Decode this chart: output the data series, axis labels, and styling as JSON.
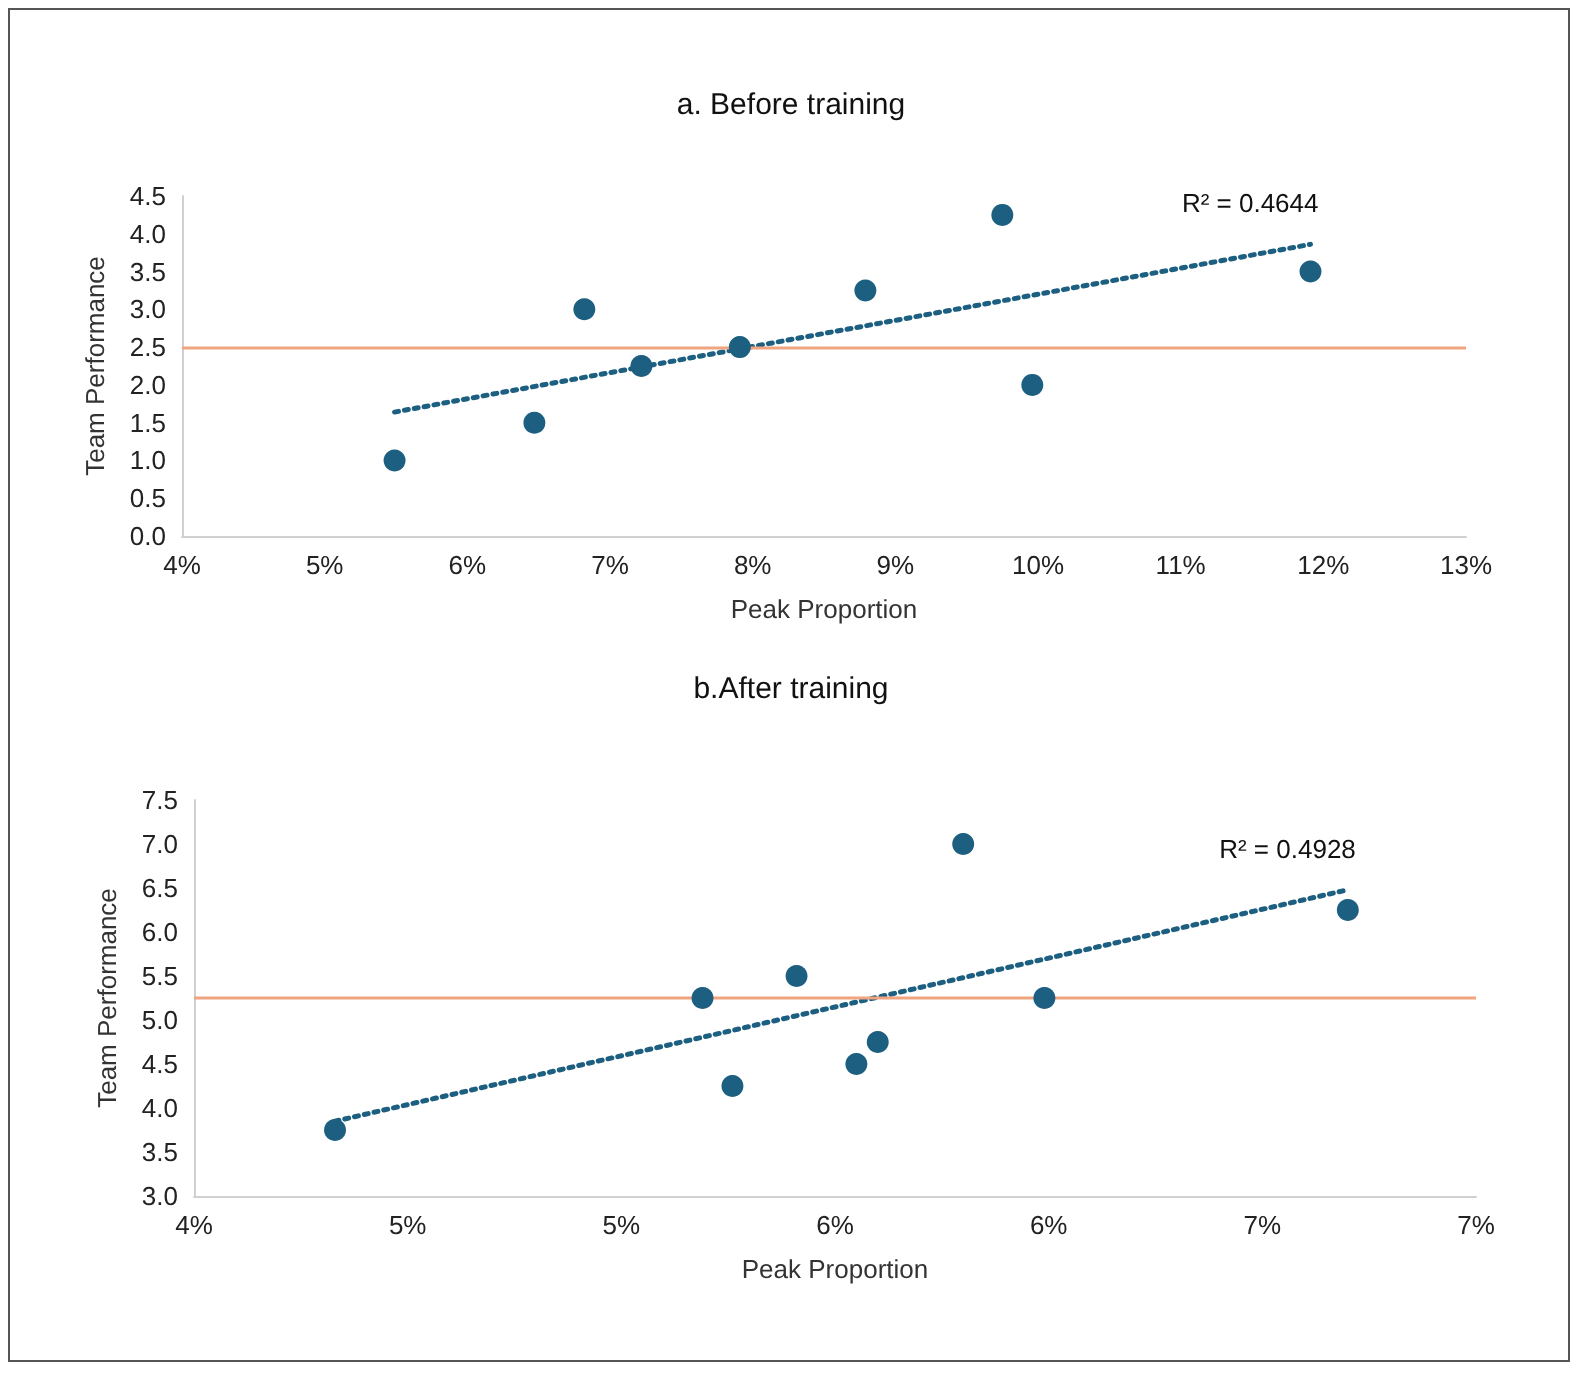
{
  "chart_data": [
    {
      "type": "scatter",
      "title": "a. Before training",
      "xlabel": "Peak Proportion",
      "ylabel": "Team Performance",
      "xlim": [
        4,
        13
      ],
      "xticks": [
        {
          "value": 4,
          "label": "4%"
        },
        {
          "value": 5,
          "label": "5%"
        },
        {
          "value": 6,
          "label": "6%"
        },
        {
          "value": 7,
          "label": "7%"
        },
        {
          "value": 8,
          "label": "8%"
        },
        {
          "value": 9,
          "label": "9%"
        },
        {
          "value": 10,
          "label": "10%"
        },
        {
          "value": 11,
          "label": "11%"
        },
        {
          "value": 12,
          "label": "12%"
        },
        {
          "value": 13,
          "label": "13%"
        }
      ],
      "ylim": [
        0,
        4.5
      ],
      "yticks": [
        {
          "value": 0,
          "label": "0.0"
        },
        {
          "value": 0.5,
          "label": "0.5"
        },
        {
          "value": 1,
          "label": "1.0"
        },
        {
          "value": 1.5,
          "label": "1.5"
        },
        {
          "value": 2,
          "label": "2.0"
        },
        {
          "value": 2.5,
          "label": "2.5"
        },
        {
          "value": 3,
          "label": "3.0"
        },
        {
          "value": 3.5,
          "label": "3.5"
        },
        {
          "value": 4,
          "label": "4.0"
        },
        {
          "value": 4.5,
          "label": "4.5"
        }
      ],
      "series": [
        {
          "color": "#1c5f80",
          "marker": "circle",
          "x": [
            5.49,
            6.47,
            6.82,
            7.22,
            7.91,
            8.79,
            9.75,
            9.96,
            11.91
          ],
          "values": [
            1.0,
            1.5,
            3.0,
            2.25,
            2.5,
            3.25,
            4.25,
            2.0,
            3.5
          ]
        },
        {
          "type": "line",
          "color": "#1c5f80",
          "marker": "none",
          "line_style": "dotted",
          "x": [
            5.49,
            11.91
          ],
          "values": [
            1.64,
            3.86
          ]
        }
      ],
      "ref_lines": [
        {
          "axis": "y",
          "value": 2.5,
          "color": "#f0a480"
        }
      ],
      "annotations": [
        "R² = 0.4644"
      ]
    },
    {
      "type": "scatter",
      "title": "b.After training",
      "xlabel": "Peak Proportion",
      "ylabel": "Team Performance",
      "xlim": [
        4,
        7
      ],
      "xticks": [
        {
          "value": 4,
          "label": "4%"
        },
        {
          "value": 4.5,
          "label": "5%"
        },
        {
          "value": 5,
          "label": "5%"
        },
        {
          "value": 5.5,
          "label": "6%"
        },
        {
          "value": 6,
          "label": "6%"
        },
        {
          "value": 6.5,
          "label": "7%"
        },
        {
          "value": 7,
          "label": "7%"
        }
      ],
      "ylim": [
        3,
        7.5
      ],
      "yticks": [
        {
          "value": 3,
          "label": "3.0"
        },
        {
          "value": 3.5,
          "label": "3.5"
        },
        {
          "value": 4,
          "label": "4.0"
        },
        {
          "value": 4.5,
          "label": "4.5"
        },
        {
          "value": 5,
          "label": "5.0"
        },
        {
          "value": 5.5,
          "label": "5.5"
        },
        {
          "value": 6,
          "label": "6.0"
        },
        {
          "value": 6.5,
          "label": "6.5"
        },
        {
          "value": 7,
          "label": "7.0"
        },
        {
          "value": 7.5,
          "label": "7.5"
        }
      ],
      "series": [
        {
          "color": "#1c5f80",
          "marker": "circle",
          "x": [
            4.33,
            5.19,
            5.26,
            5.41,
            5.55,
            5.6,
            5.8,
            5.99,
            6.7
          ],
          "values": [
            3.75,
            5.25,
            4.25,
            5.5,
            4.5,
            4.75,
            7.0,
            5.25,
            6.25
          ]
        },
        {
          "type": "line",
          "color": "#1c5f80",
          "marker": "none",
          "line_style": "dotted",
          "x": [
            4.33,
            6.7
          ],
          "values": [
            3.85,
            6.48
          ]
        }
      ],
      "ref_lines": [
        {
          "axis": "y",
          "value": 5.25,
          "color": "#f0a480"
        }
      ],
      "annotations": [
        "R² = 0.4928"
      ]
    }
  ]
}
